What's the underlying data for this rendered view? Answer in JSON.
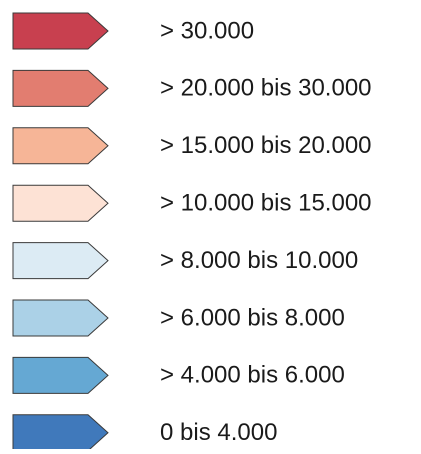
{
  "legend": {
    "items": [
      {
        "label": "> 30.000",
        "color": "#c8404f"
      },
      {
        "label": "> 20.000 bis 30.000",
        "color": "#e27d70"
      },
      {
        "label": "> 15.000 bis 20.000",
        "color": "#f6b597"
      },
      {
        "label": "> 10.000 bis 15.000",
        "color": "#fde2d5"
      },
      {
        "label": "> 8.000 bis 10.000",
        "color": "#dcebf4"
      },
      {
        "label": "> 6.000 bis 8.000",
        "color": "#abd1e7"
      },
      {
        "label": "> 4.000 bis 6.000",
        "color": "#65a8d3"
      },
      {
        "label": "0 bis 4.000",
        "color": "#4079bb"
      }
    ]
  }
}
